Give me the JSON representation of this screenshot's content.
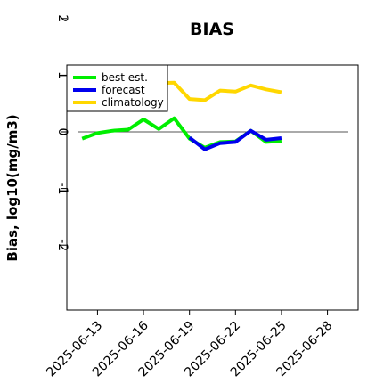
{
  "chart_data": {
    "type": "line",
    "title": "BIAS",
    "xlabel": "",
    "ylabel": "Bias, log10(mg/m3)",
    "ylim": [
      -2,
      2
    ],
    "yticks": [
      "-2",
      "-1",
      "0",
      "1",
      "2"
    ],
    "xlim": [
      "2025-06-11",
      "2025-06-30"
    ],
    "xticks": [
      "2025-06-13",
      "2025-06-16",
      "2025-06-19",
      "2025-06-22",
      "2025-06-25",
      "2025-06-28"
    ],
    "highlighted_xtick": "2025-06-19",
    "highlight_color": "#228B22",
    "reference_line_y": 0,
    "grid": false,
    "legend_position": "top-left",
    "series": [
      {
        "name": "best est.",
        "color": "#00ee00",
        "x": [
          "2025-06-12",
          "2025-06-13",
          "2025-06-14",
          "2025-06-15",
          "2025-06-16",
          "2025-06-17",
          "2025-06-18",
          "2025-06-19",
          "2025-06-20",
          "2025-06-21",
          "2025-06-22",
          "2025-06-23",
          "2025-06-24",
          "2025-06-25"
        ],
        "y": [
          -0.12,
          -0.02,
          0.02,
          0.04,
          0.22,
          0.05,
          0.24,
          -0.12,
          -0.28,
          -0.18,
          -0.17,
          0.02,
          -0.18,
          -0.16
        ]
      },
      {
        "name": "forecast",
        "color": "#0000ee",
        "x": [
          "2025-06-19",
          "2025-06-20",
          "2025-06-21",
          "2025-06-22",
          "2025-06-23",
          "2025-06-24",
          "2025-06-25"
        ],
        "y": [
          -0.1,
          -0.31,
          -0.2,
          -0.18,
          0.02,
          -0.14,
          -0.11
        ]
      },
      {
        "name": "climatology",
        "color": "#ffd700",
        "x": [
          "2025-06-12",
          "2025-06-13",
          "2025-06-14",
          "2025-06-15",
          "2025-06-16",
          "2025-06-17",
          "2025-06-18",
          "2025-06-19",
          "2025-06-20",
          "2025-06-21",
          "2025-06-22",
          "2025-06-23",
          "2025-06-24",
          "2025-06-25"
        ],
        "y": [
          0.83,
          0.8,
          0.9,
          0.97,
          0.97,
          0.86,
          0.87,
          0.58,
          0.56,
          0.73,
          0.71,
          0.82,
          0.75,
          0.7
        ]
      }
    ]
  }
}
